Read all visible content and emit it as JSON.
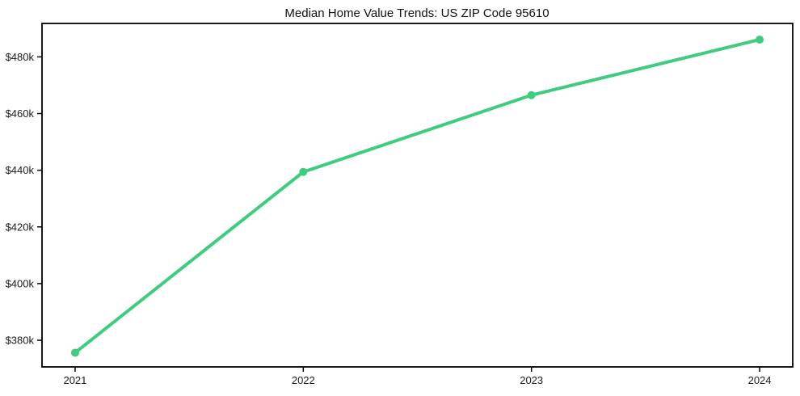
{
  "chart_data": {
    "type": "line",
    "title": "Median Home Value Trends: US ZIP Code 95610",
    "x": [
      2021,
      2022,
      2023,
      2024
    ],
    "x_tick_labels": [
      "2021",
      "2022",
      "2023",
      "2024"
    ],
    "values_k_usd": [
      375.6,
      439.4,
      466.5,
      486.1
    ],
    "y_ticks": [
      380,
      400,
      420,
      440,
      460,
      480
    ],
    "y_tick_labels": [
      "$380k",
      "$400k",
      "$420k",
      "$440k",
      "$460k",
      "$480k"
    ],
    "xlim": [
      2020.855,
      2024.145
    ],
    "ylim": [
      370.6,
      491.8
    ],
    "xlabel": "",
    "ylabel": "",
    "grid": false,
    "legend_position": "none",
    "line_color": "#3ecd7f",
    "marker": "circle",
    "spine_color": "#000000",
    "background_color": "#ffffff"
  }
}
